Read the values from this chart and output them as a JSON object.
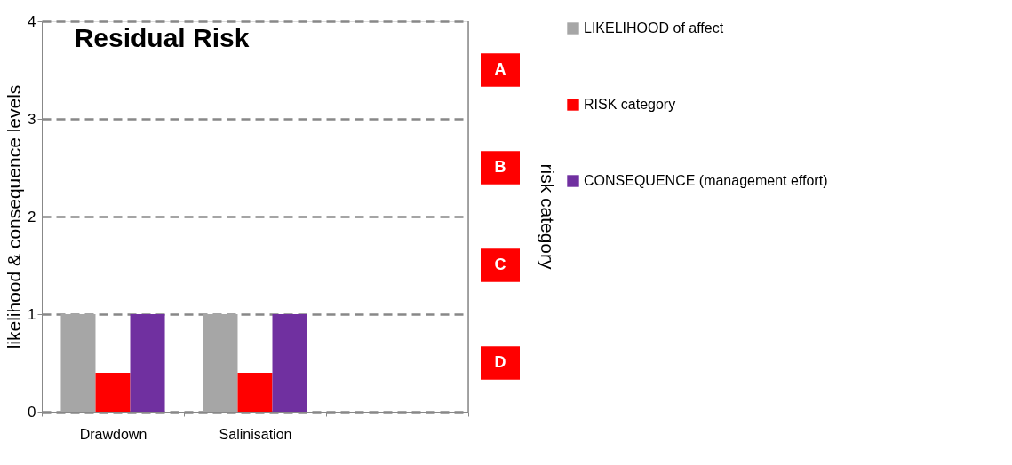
{
  "chart_data": {
    "type": "bar",
    "title": "Residual Risk",
    "categories": [
      "Drawdown",
      "Salinisation",
      null
    ],
    "series": [
      {
        "name": "LIKELIHOOD of affect",
        "color": "#a6a6a6",
        "values": [
          1,
          1,
          null
        ]
      },
      {
        "name": "RISK category",
        "color": "#ff0000",
        "values": [
          0.4,
          0.4,
          null
        ]
      },
      {
        "name": "CONSEQUENCE (management effort)",
        "color": "#7030a0",
        "values": [
          1,
          1,
          null
        ]
      }
    ],
    "ylabel": "likelihood & consequence levels",
    "y2label": "risk  category",
    "ylim": [
      0,
      4
    ],
    "yticks": [
      0,
      1,
      2,
      3,
      4
    ],
    "annotations": [
      "A",
      "B",
      "C",
      "D"
    ],
    "grid": "y",
    "legend": "right"
  }
}
